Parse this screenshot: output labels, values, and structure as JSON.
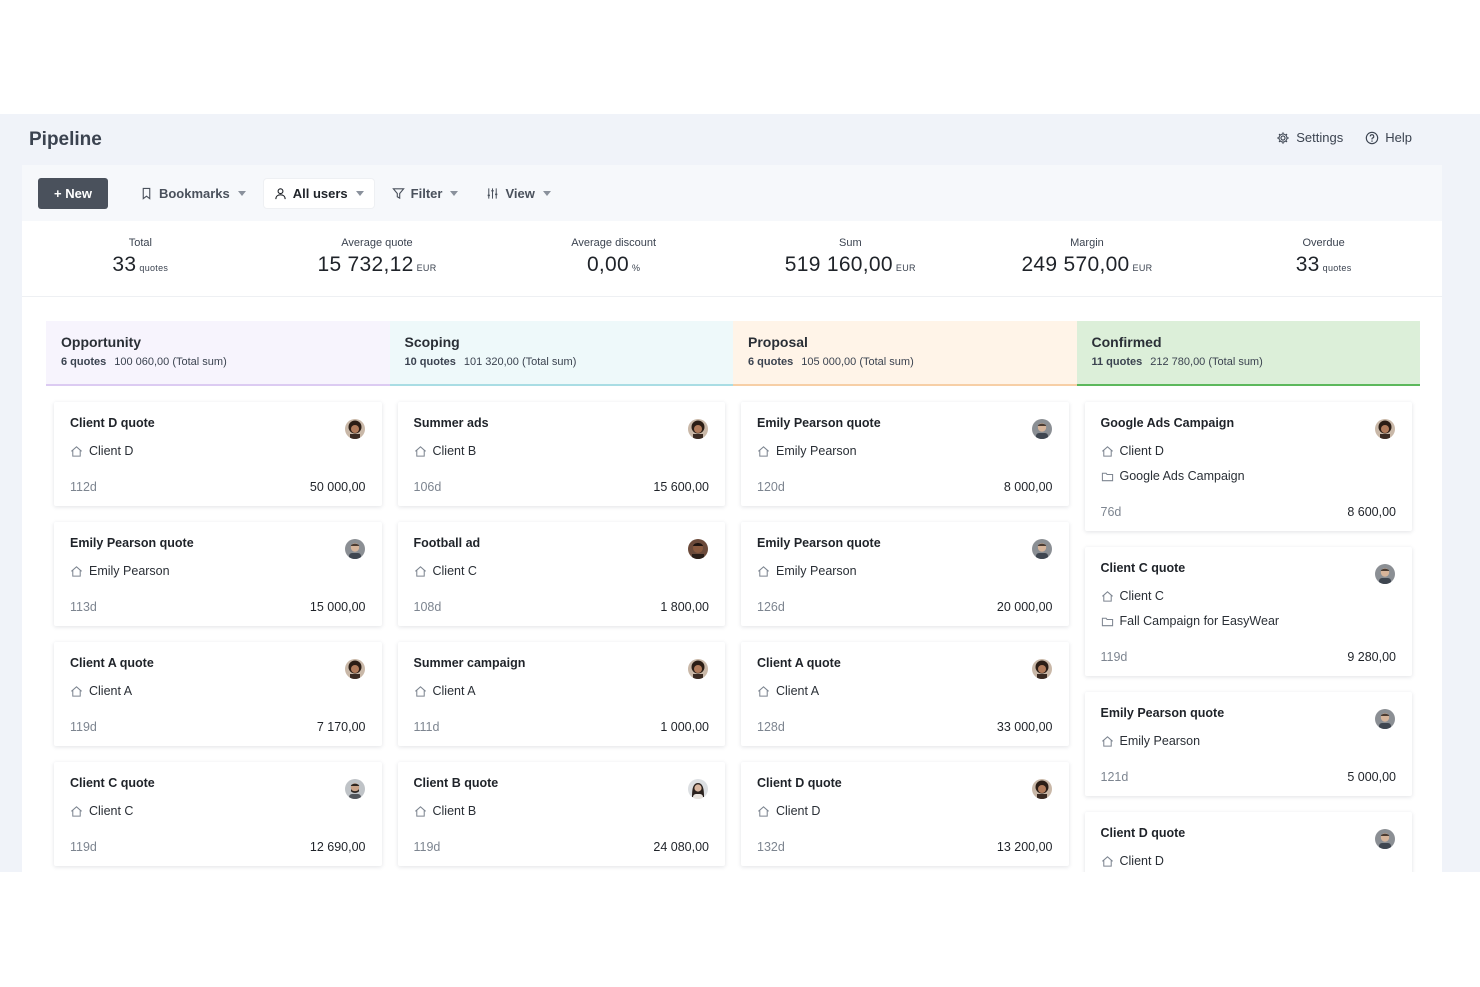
{
  "header": {
    "title": "Pipeline",
    "settings_label": "Settings",
    "help_label": "Help"
  },
  "toolbar": {
    "new_label": "+ New",
    "bookmarks_label": "Bookmarks",
    "users_label": "All users",
    "filter_label": "Filter",
    "view_label": "View"
  },
  "stats": [
    {
      "label": "Total",
      "value": "33",
      "unit": "quotes"
    },
    {
      "label": "Average quote",
      "value": "15 732,12",
      "unit": "EUR"
    },
    {
      "label": "Average discount",
      "value": "0,00",
      "unit": "%"
    },
    {
      "label": "Sum",
      "value": "519 160,00",
      "unit": "EUR"
    },
    {
      "label": "Margin",
      "value": "249 570,00",
      "unit": "EUR"
    },
    {
      "label": "Overdue",
      "value": "33",
      "unit": "quotes"
    }
  ],
  "colors": {
    "opportunity": "#f7f4fd",
    "scoping": "#eef9fa",
    "proposal": "#fff4e8",
    "confirmed": "#dcefd9"
  },
  "columns": [
    {
      "title": "Opportunity",
      "count": "6 quotes",
      "sum": "100 060,00 (Total sum)",
      "cards": [
        {
          "title": "Client D quote",
          "client": "Client D",
          "age": "112d",
          "amount": "50 000,00",
          "avatar": "curly"
        },
        {
          "title": "Emily Pearson quote",
          "client": "Emily Pearson",
          "age": "113d",
          "amount": "15 000,00",
          "avatar": "man"
        },
        {
          "title": "Client A quote",
          "client": "Client A",
          "age": "119d",
          "amount": "7 170,00",
          "avatar": "curly"
        },
        {
          "title": "Client C quote",
          "client": "Client C",
          "age": "119d",
          "amount": "12 690,00",
          "avatar": "beard"
        }
      ]
    },
    {
      "title": "Scoping",
      "count": "10 quotes",
      "sum": "101 320,00 (Total sum)",
      "cards": [
        {
          "title": "Summer ads",
          "client": "Client B",
          "age": "106d",
          "amount": "15 600,00",
          "avatar": "curly"
        },
        {
          "title": "Football ad",
          "client": "Client C",
          "age": "108d",
          "amount": "1 800,00",
          "avatar": "dark"
        },
        {
          "title": "Summer campaign",
          "client": "Client A",
          "age": "111d",
          "amount": "1 000,00",
          "avatar": "curly"
        },
        {
          "title": "Client B quote",
          "client": "Client B",
          "age": "119d",
          "amount": "24 080,00",
          "avatar": "woman"
        }
      ]
    },
    {
      "title": "Proposal",
      "count": "6 quotes",
      "sum": "105 000,00 (Total sum)",
      "cards": [
        {
          "title": "Emily Pearson quote",
          "client": "Emily Pearson",
          "age": "120d",
          "amount": "8 000,00",
          "avatar": "man"
        },
        {
          "title": "Emily Pearson quote",
          "client": "Emily Pearson",
          "age": "126d",
          "amount": "20 000,00",
          "avatar": "man"
        },
        {
          "title": "Client A quote",
          "client": "Client A",
          "age": "128d",
          "amount": "33 000,00",
          "avatar": "curly"
        },
        {
          "title": "Client D quote",
          "client": "Client D",
          "age": "132d",
          "amount": "13 200,00",
          "avatar": "curly"
        }
      ]
    },
    {
      "title": "Confirmed",
      "count": "11 quotes",
      "sum": "212 780,00 (Total sum)",
      "cards": [
        {
          "title": "Google Ads Campaign",
          "client": "Client D",
          "project": "Google Ads Campaign",
          "age": "76d",
          "amount": "8 600,00",
          "avatar": "curly"
        },
        {
          "title": "Client C quote",
          "client": "Client C",
          "project": "Fall Campaign for EasyWear",
          "age": "119d",
          "amount": "9 280,00",
          "avatar": "man"
        },
        {
          "title": "Emily Pearson quote",
          "client": "Emily Pearson",
          "age": "121d",
          "amount": "5 000,00",
          "avatar": "man"
        },
        {
          "title": "Client D quote",
          "client": "Client D",
          "age": "",
          "amount": "",
          "avatar": "man"
        }
      ]
    }
  ]
}
